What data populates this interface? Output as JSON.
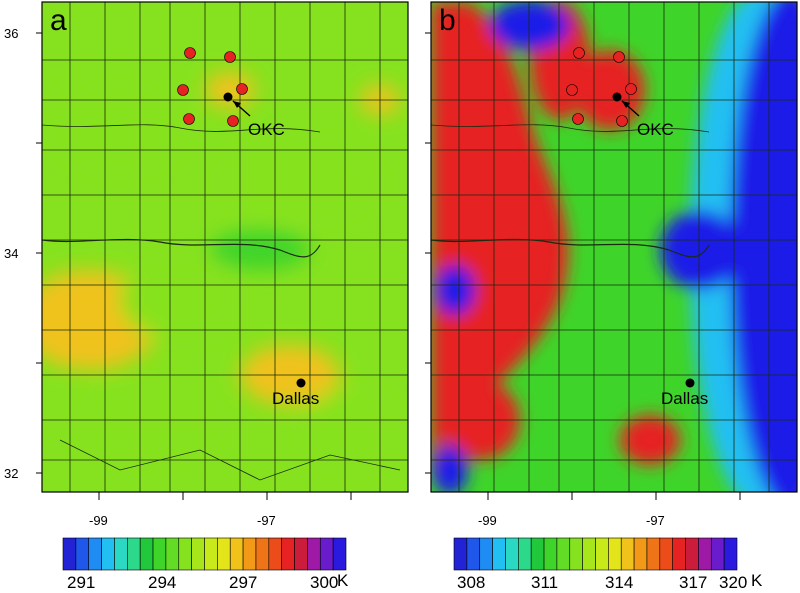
{
  "panels": [
    {
      "letter": "a",
      "lat_ticks": [
        "36",
        "34",
        "32"
      ],
      "lon_ticks": [
        "-99",
        "-97"
      ],
      "colorbar": {
        "labels": [
          "291",
          "294",
          "297",
          "300"
        ],
        "unit": "K",
        "colors": [
          "#2323d6",
          "#1f57ea",
          "#1e8cf2",
          "#22c0f2",
          "#2ad8c4",
          "#2cd88a",
          "#22c83c",
          "#3fd42a",
          "#62dc24",
          "#86e21f",
          "#a8e61c",
          "#c8ea1a",
          "#e3e41a",
          "#f0c21a",
          "#f29a18",
          "#ef7418",
          "#ec4c1a",
          "#e62222",
          "#cc1c3c",
          "#9e1aa6",
          "#6a1ccc",
          "#2a1ae0"
        ],
        "field_low": "#3fd42a",
        "field_mid": "#86e21f",
        "field_high": "#f0c21a"
      }
    },
    {
      "letter": "b",
      "lat_ticks": [
        "36",
        "34",
        "32"
      ],
      "lon_ticks": [
        "-99",
        "-97"
      ],
      "colorbar": {
        "labels": [
          "308",
          "311",
          "314",
          "317",
          "320"
        ],
        "unit": "K",
        "colors": [
          "#2323d6",
          "#1f57ea",
          "#1e8cf2",
          "#22c0f2",
          "#2ad8c4",
          "#2cd88a",
          "#22c83c",
          "#3fd42a",
          "#62dc24",
          "#86e21f",
          "#a8e61c",
          "#c8ea1a",
          "#e3e41a",
          "#f0c21a",
          "#f29a18",
          "#ef7418",
          "#ec4c1a",
          "#e62222",
          "#cc1c3c",
          "#9e1aa6",
          "#6a1ccc",
          "#2a1ae0"
        ],
        "field_west": "#e62222",
        "field_mid": "#3fd42a",
        "field_east": "#1a1ae8"
      }
    }
  ],
  "cities": {
    "okc": "OKC",
    "dallas": "Dallas"
  }
}
